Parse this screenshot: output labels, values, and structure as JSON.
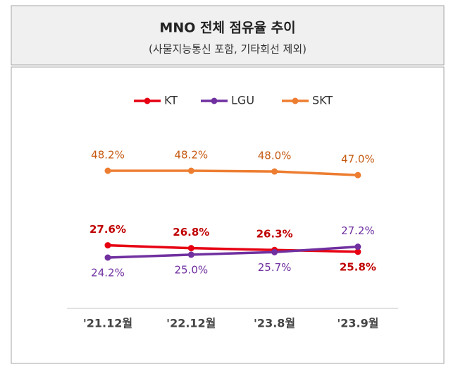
{
  "chart_data": {
    "type": "line",
    "title": "MNO 전체 점유율 추이",
    "subtitle": "(사물지능통신 포함, 기타회선 제외)",
    "categories": [
      "'21.12월",
      "'22.12월",
      "'23.8월",
      "'23.9월"
    ],
    "series": [
      {
        "name": "KT",
        "color": "#e60012",
        "label_color": "#c00000",
        "values": [
          27.6,
          26.8,
          26.3,
          25.8
        ],
        "value_labels": [
          "27.6%",
          "26.8%",
          "26.3%",
          "25.8%"
        ]
      },
      {
        "name": "LGU",
        "color": "#7030a0",
        "label_color": "#7030a0",
        "values": [
          24.2,
          25.0,
          25.7,
          27.2
        ],
        "value_labels": [
          "24.2%",
          "25.0%",
          "25.7%",
          "27.2%"
        ]
      },
      {
        "name": "SKT",
        "color": "#ed7d31",
        "label_color": "#c55a11",
        "values": [
          48.2,
          48.2,
          48.0,
          47.0
        ],
        "value_labels": [
          "48.2%",
          "48.2%",
          "48.0%",
          "47.0%"
        ]
      }
    ],
    "legend": "top"
  }
}
